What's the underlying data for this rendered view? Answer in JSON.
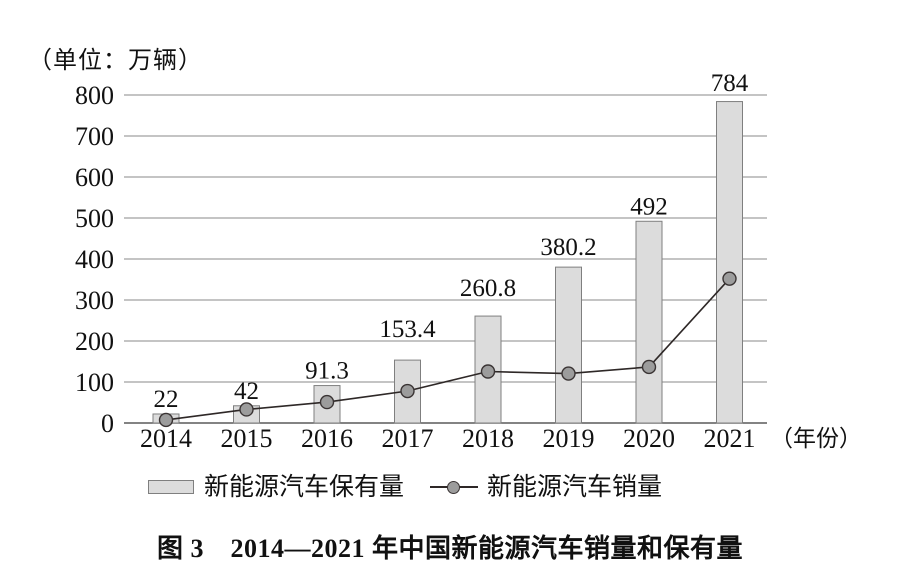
{
  "colors": {
    "background": "#ffffff",
    "text": "#111111",
    "bar_fill": "#dcdcdc",
    "bar_stroke": "#7f7f7f",
    "grid": "#8a8a8a",
    "axis": "#5a5a5a",
    "line": "#2e2827",
    "dot_fill": "#9c9c9c",
    "dot_stroke": "#3a3434"
  },
  "chart_data": {
    "type": "combo-bar-line",
    "title": "图 3　2014—2021 年中国新能源汽车销量和保有量",
    "unit_label": "（单位：万辆）",
    "categories": [
      "2014",
      "2015",
      "2016",
      "2017",
      "2018",
      "2019",
      "2020",
      "2021"
    ],
    "series": [
      {
        "name": "新能源汽车保有量",
        "type": "bar",
        "values": [
          22,
          42,
          91.3,
          153.4,
          260.8,
          380.2,
          492,
          784
        ],
        "data_labels": [
          "22",
          "42",
          "91.3",
          "153.4",
          "260.8",
          "380.2",
          "492",
          "784"
        ]
      },
      {
        "name": "新能源汽车销量",
        "type": "line",
        "values": [
          7.5,
          33,
          51,
          78,
          125.6,
          120.6,
          136.7,
          352
        ]
      }
    ],
    "x_axis": {
      "tick_labels": [
        "2014",
        "2015",
        "2016",
        "2017",
        "2018",
        "2019",
        "2020",
        "2021"
      ],
      "unit": "（年份）"
    },
    "y_axis": {
      "min": 0,
      "max": 800,
      "step": 100,
      "tick_labels": [
        "0",
        "100",
        "200",
        "300",
        "400",
        "500",
        "600",
        "700",
        "800"
      ]
    },
    "grid": true,
    "legend_position": "bottom"
  }
}
